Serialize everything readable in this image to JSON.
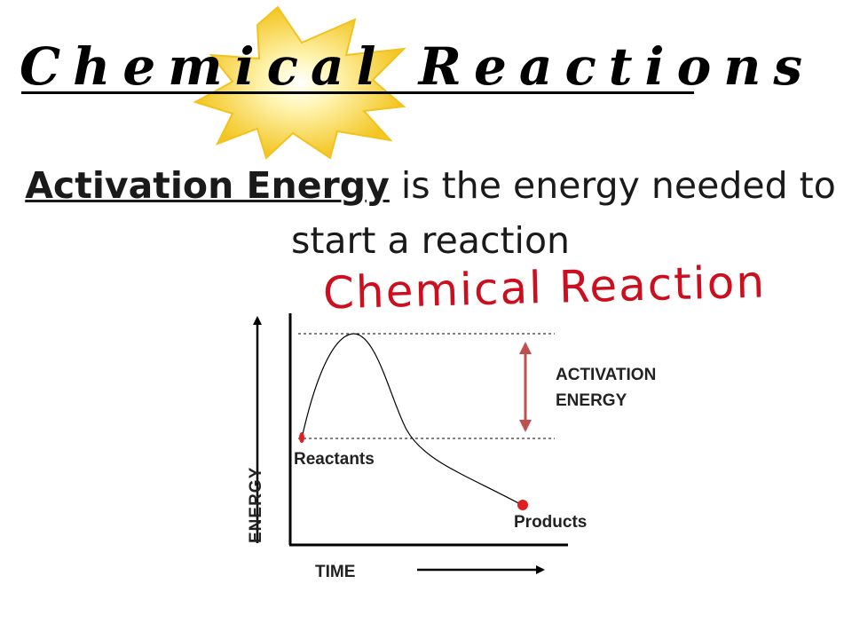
{
  "title": "Chemical Reactions",
  "definition": {
    "term": "Activation Energy",
    "rest": " is the energy needed to start a reaction"
  },
  "handwritten_note": "Chemical Reaction",
  "diagram": {
    "activation_label_line1": "ACTIVATION",
    "activation_label_line2": "ENERGY",
    "reactants_label": "Reactants",
    "products_label": "Products",
    "x_axis_label": "TIME",
    "y_axis_label": "ENERGY"
  },
  "colors": {
    "burst_outer": "#f5cf2a",
    "burst_inner": "#fff6b8",
    "handwriting": "#cc0e1e",
    "activation_arrow": "#c0504d",
    "markers": "#e02020"
  }
}
